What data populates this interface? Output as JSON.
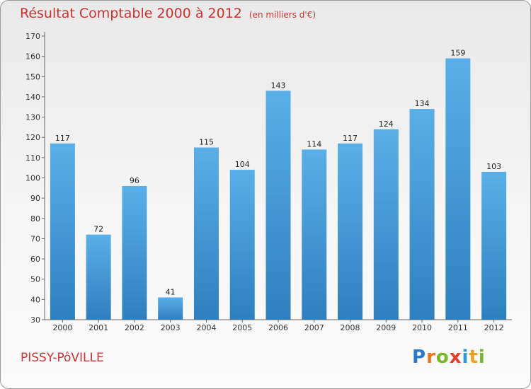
{
  "header": {
    "title": "Résultat Comptable 2000 à 2012",
    "unit": "(en milliers d'€)"
  },
  "footer": {
    "commune": "PISSY-PôVILLE",
    "logo": {
      "letters": [
        "P",
        "r",
        "o",
        "x",
        "i",
        "t",
        "i"
      ],
      "colors": [
        "#2a78c8",
        "#e8781a",
        "#7ab828",
        "#e83a2a",
        "#2a9ad8",
        "#f0a020",
        "#7ab828"
      ]
    }
  },
  "colors": {
    "title": "#cc3333",
    "bar_light": "#5aafe8",
    "bar_dark": "#2e7fbf"
  },
  "chart_data": {
    "type": "bar",
    "categories": [
      "2000",
      "2001",
      "2002",
      "2003",
      "2004",
      "2005",
      "2006",
      "2007",
      "2008",
      "2009",
      "2010",
      "2011",
      "2012"
    ],
    "values": [
      117,
      72,
      96,
      41,
      115,
      104,
      143,
      114,
      117,
      124,
      134,
      159,
      103
    ],
    "ylim": [
      30,
      170
    ],
    "yticks": [
      "30",
      "40",
      "50",
      "60",
      "70",
      "80",
      "90",
      "100",
      "110",
      "120",
      "130",
      "140",
      "150",
      "160",
      "170"
    ],
    "title": "Résultat Comptable 2000 à 2012",
    "xlabel": "",
    "ylabel": "",
    "grid": false
  }
}
